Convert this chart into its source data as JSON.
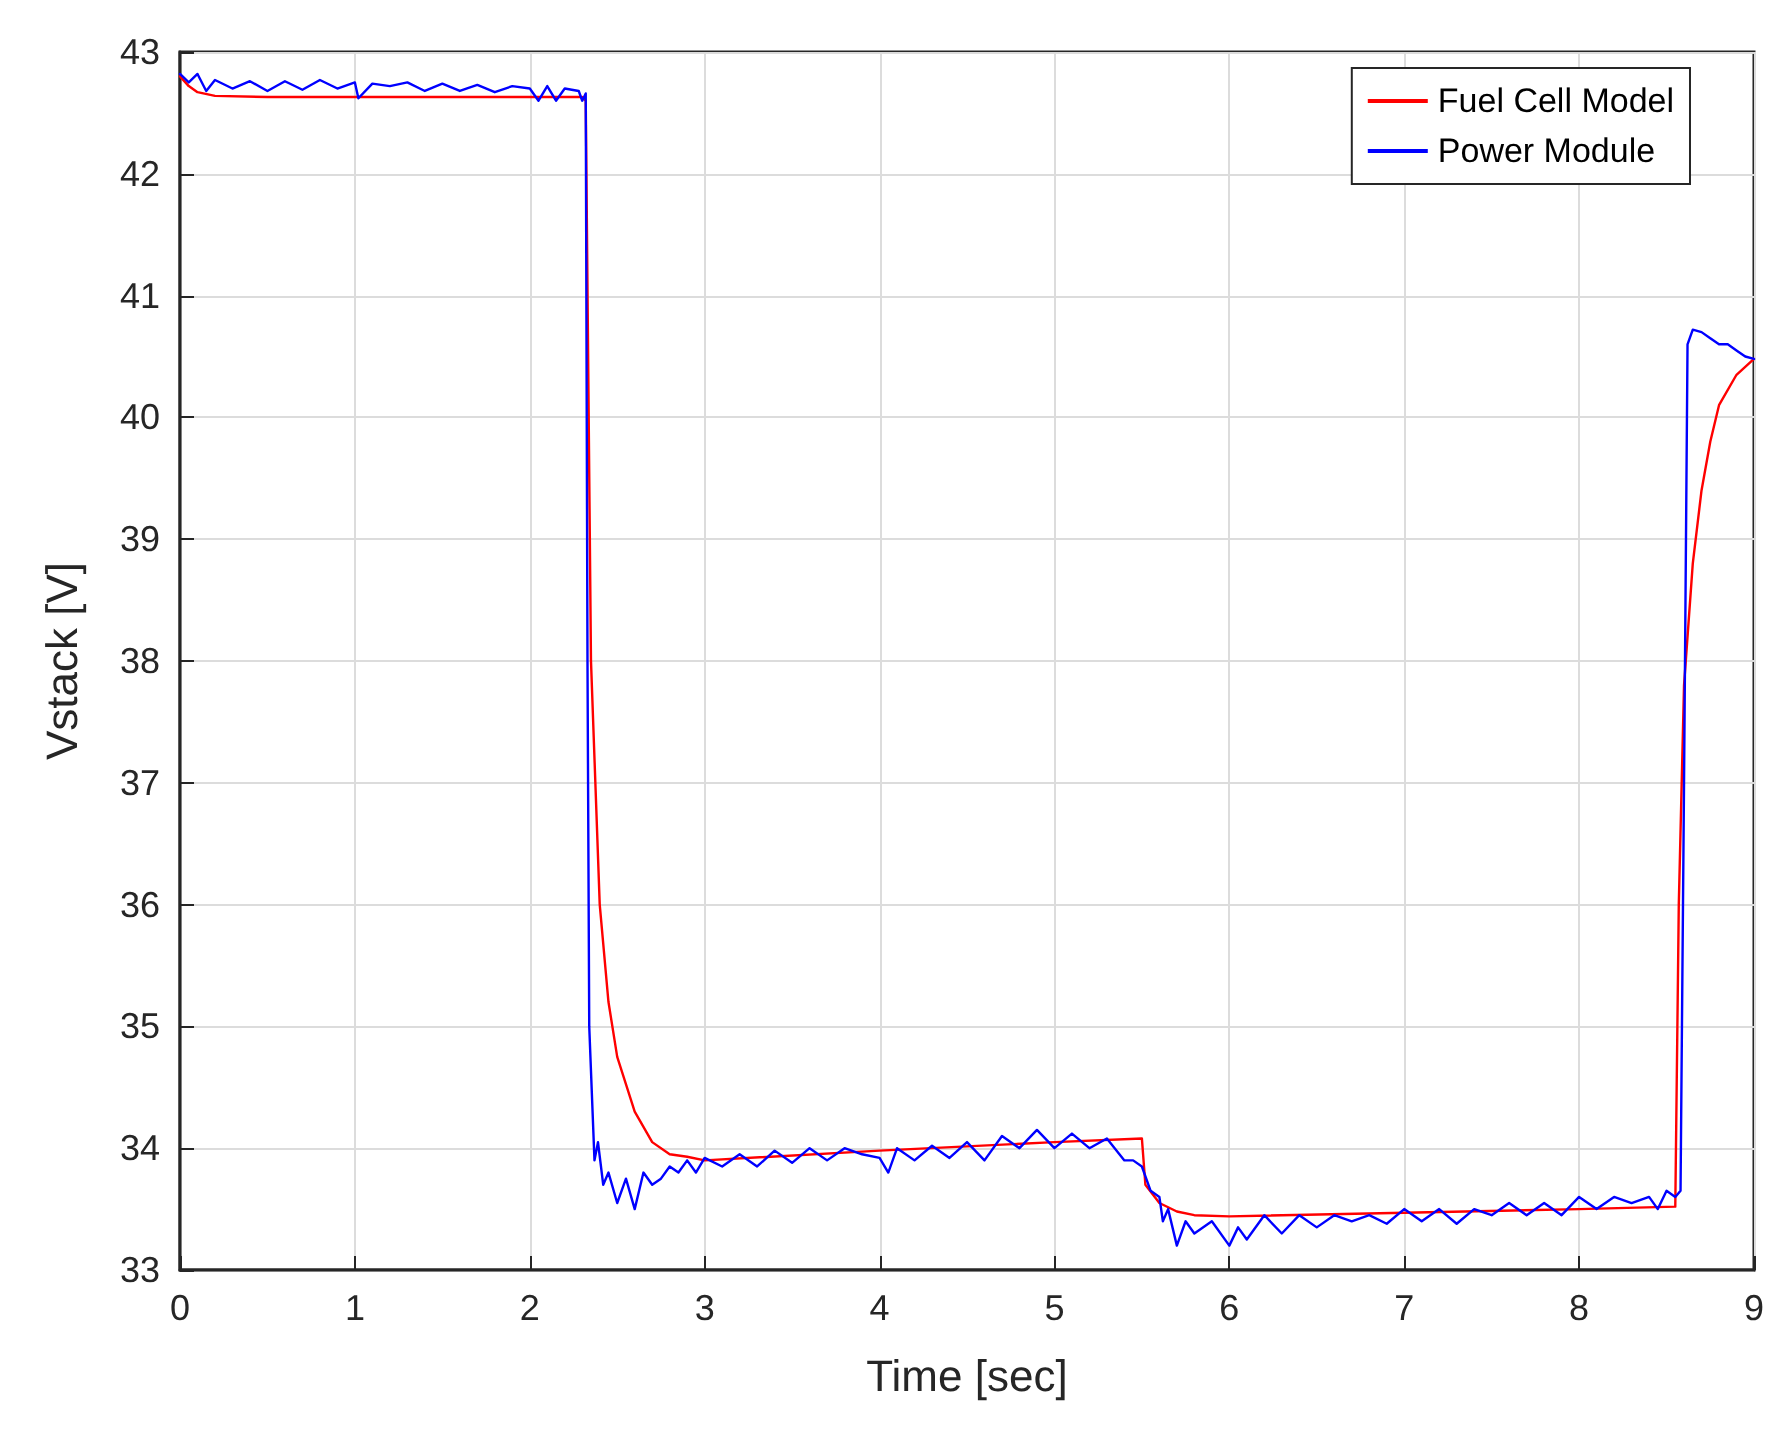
{
  "chart_data": {
    "type": "line",
    "xlabel": "Time [sec]",
    "ylabel": "Vstack [V]",
    "xlim": [
      0,
      9
    ],
    "xticks": [
      0,
      1,
      2,
      3,
      4,
      5,
      6,
      7,
      8,
      9
    ],
    "ylim": [
      33,
      43
    ],
    "yticks": [
      33,
      34,
      35,
      36,
      37,
      38,
      39,
      40,
      41,
      42,
      43
    ],
    "grid": true,
    "legend": "top right",
    "line_style": "solid",
    "marker": "none",
    "series": [
      {
        "name": "Fuel Cell Model",
        "color": "#ff0000",
        "x": [
          0,
          0.05,
          0.1,
          0.2,
          0.5,
          2.3,
          2.32,
          2.35,
          2.4,
          2.45,
          2.5,
          2.6,
          2.7,
          2.8,
          2.9,
          3.0,
          4.0,
          5.0,
          5.5,
          5.52,
          5.6,
          5.7,
          5.8,
          6.0,
          7.0,
          8.0,
          8.55,
          8.57,
          8.6,
          8.65,
          8.7,
          8.75,
          8.8,
          8.9,
          9
        ],
        "values": [
          42.8,
          42.72,
          42.67,
          42.64,
          42.63,
          42.63,
          42.6,
          38,
          36,
          35.2,
          34.75,
          34.3,
          34.05,
          33.95,
          33.93,
          33.9,
          33.98,
          34.05,
          34.08,
          33.7,
          33.55,
          33.48,
          33.45,
          33.44,
          33.47,
          33.5,
          33.52,
          36,
          37.8,
          38.8,
          39.4,
          39.8,
          40.1,
          40.35,
          40.48
        ]
      },
      {
        "name": "Power Module",
        "color": "#0000ff",
        "x": [
          0,
          0.05,
          0.1,
          0.15,
          0.2,
          0.3,
          0.4,
          0.5,
          0.6,
          0.7,
          0.8,
          0.9,
          1.0,
          1.02,
          1.1,
          1.2,
          1.3,
          1.4,
          1.5,
          1.6,
          1.7,
          1.8,
          1.9,
          2.0,
          2.05,
          2.1,
          2.15,
          2.2,
          2.28,
          2.3,
          2.32,
          2.33,
          2.34,
          2.37,
          2.39,
          2.42,
          2.45,
          2.5,
          2.55,
          2.6,
          2.65,
          2.7,
          2.75,
          2.8,
          2.85,
          2.9,
          2.95,
          3.0,
          3.1,
          3.2,
          3.3,
          3.4,
          3.5,
          3.6,
          3.7,
          3.8,
          3.9,
          4.0,
          4.05,
          4.1,
          4.2,
          4.3,
          4.4,
          4.5,
          4.6,
          4.7,
          4.8,
          4.9,
          5.0,
          5.1,
          5.2,
          5.3,
          5.4,
          5.45,
          5.5,
          5.55,
          5.6,
          5.62,
          5.65,
          5.7,
          5.75,
          5.8,
          5.9,
          6.0,
          6.05,
          6.1,
          6.2,
          6.3,
          6.4,
          6.5,
          6.6,
          6.7,
          6.8,
          6.9,
          7.0,
          7.1,
          7.2,
          7.3,
          7.4,
          7.5,
          7.6,
          7.7,
          7.8,
          7.9,
          8.0,
          8.1,
          8.2,
          8.3,
          8.4,
          8.45,
          8.5,
          8.55,
          8.58,
          8.6,
          8.62,
          8.65,
          8.7,
          8.75,
          8.8,
          8.85,
          8.9,
          8.95,
          9
        ],
        "values": [
          42.82,
          42.75,
          42.82,
          42.68,
          42.77,
          42.7,
          42.76,
          42.68,
          42.76,
          42.69,
          42.77,
          42.7,
          42.75,
          42.62,
          42.74,
          42.72,
          42.75,
          42.68,
          42.74,
          42.68,
          42.73,
          42.67,
          42.72,
          42.7,
          42.6,
          42.72,
          42.6,
          42.7,
          42.68,
          42.6,
          42.66,
          38,
          35,
          33.9,
          34.05,
          33.7,
          33.8,
          33.55,
          33.75,
          33.5,
          33.8,
          33.7,
          33.75,
          33.85,
          33.8,
          33.9,
          33.8,
          33.92,
          33.85,
          33.95,
          33.85,
          33.98,
          33.88,
          34.0,
          33.9,
          34.0,
          33.95,
          33.92,
          33.8,
          34.0,
          33.9,
          34.02,
          33.92,
          34.05,
          33.9,
          34.1,
          34.0,
          34.15,
          34.0,
          34.12,
          34.0,
          34.08,
          33.9,
          33.9,
          33.85,
          33.65,
          33.6,
          33.4,
          33.5,
          33.2,
          33.4,
          33.3,
          33.4,
          33.2,
          33.35,
          33.25,
          33.45,
          33.3,
          33.45,
          33.35,
          33.45,
          33.4,
          33.45,
          33.38,
          33.5,
          33.4,
          33.5,
          33.38,
          33.5,
          33.45,
          33.55,
          33.45,
          33.55,
          33.45,
          33.6,
          33.5,
          33.6,
          33.55,
          33.6,
          33.5,
          33.65,
          33.6,
          33.65,
          37,
          40.6,
          40.72,
          40.7,
          40.65,
          40.6,
          40.6,
          40.55,
          40.5,
          40.48
        ]
      }
    ]
  }
}
